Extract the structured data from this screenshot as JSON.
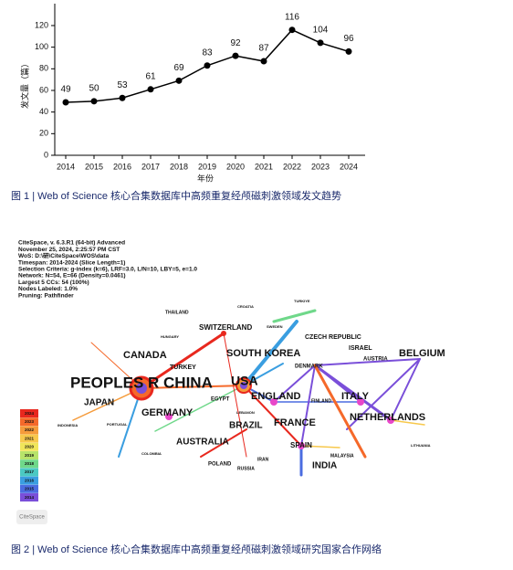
{
  "chart_data": {
    "type": "line",
    "y_label": "发文量（篇）",
    "x_label": "年份",
    "categories": [
      "2014",
      "2015",
      "2016",
      "2017",
      "2018",
      "2019",
      "2020",
      "2021",
      "2022",
      "2023",
      "2024"
    ],
    "values": [
      49,
      50,
      53,
      61,
      69,
      83,
      92,
      87,
      116,
      104,
      96
    ],
    "color": "#000000",
    "ylim": [
      0,
      140
    ],
    "yticks": [
      0,
      20,
      40,
      60,
      80,
      100,
      120
    ]
  },
  "figure1_caption": "图 1 | Web of Science 核心合集数据库中高频重复经颅磁刺激领域发文趋势",
  "figure2": {
    "header": [
      "CiteSpace, v. 6.3.R1 (64-bit) Advanced",
      "November 25, 2024, 2:25:57 PM CST",
      "WoS: D:\\研\\CiteSpace\\WOS\\data",
      "Timespan: 2014-2024 (Slice Length=1)",
      "Selection Criteria: g-index (k=6), LRF=3.0, L/N=10, LBY=5, e=1.0",
      "Network: N=54, E=66 (Density=0.0461)",
      "Largest 5 CCs: 54 (100%)",
      "Nodes Labeled: 1.0%",
      "Pruning: Pathfinder"
    ],
    "nodes": [
      "PEOPLES R CHINA",
      "USA",
      "GERMANY",
      "CANADA",
      "SOUTH KOREA",
      "ENGLAND",
      "FRANCE",
      "ITALY",
      "NETHERLANDS",
      "BELGIUM",
      "SWITZERLAND",
      "JAPAN",
      "AUSTRALIA",
      "BRAZIL",
      "SPAIN",
      "INDIA",
      "CZECH REPUBLIC",
      "ISRAEL",
      "AUSTRIA",
      "DENMARK",
      "FINLAND",
      "TURKEY",
      "EGYPT",
      "POLAND",
      "RUSSIA",
      "IRAN",
      "MALAYSIA",
      "THAILAND",
      "HUNGARY",
      "CROATIA",
      "SWEDEN",
      "TURKIYE",
      "PORTUGAL",
      "INDONESIA",
      "COLOMBIA",
      "LEBANON",
      "LITHUANIA"
    ],
    "legend_years": [
      "2024",
      "2023",
      "2022",
      "2021",
      "2020",
      "2019",
      "2018",
      "2017",
      "2016",
      "2015",
      "2014"
    ],
    "logo": "CiteSpace",
    "caption": "图 2 | Web of Science 核心合集数据库中高频重复经颅磁刺激领域研究国家合作网络"
  }
}
